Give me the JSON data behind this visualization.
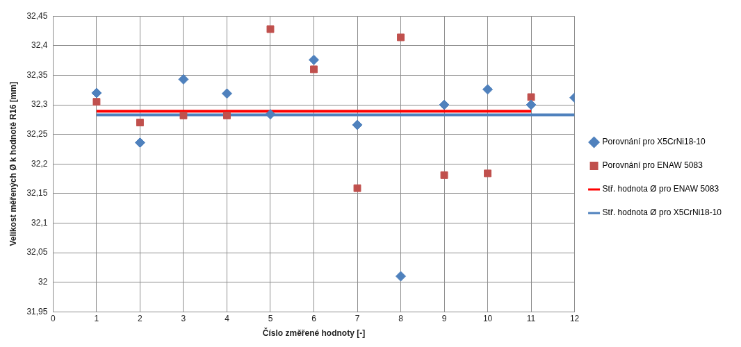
{
  "chart_data": {
    "type": "scatter",
    "xlabel": "Číslo změřené hodnoty [-]",
    "ylabel": "Velikost měřených Ø k hodnotě R16 [mm]",
    "xlim": [
      0,
      12
    ],
    "xticks": [
      0,
      1,
      2,
      3,
      4,
      5,
      6,
      7,
      8,
      9,
      10,
      11,
      12
    ],
    "ylim": [
      31.95,
      32.45
    ],
    "yticks": [
      {
        "value": 31.95,
        "label": "31,95"
      },
      {
        "value": 32,
        "label": "32"
      },
      {
        "value": 32.05,
        "label": "32,05"
      },
      {
        "value": 32.1,
        "label": "32,1"
      },
      {
        "value": 32.15,
        "label": "32,15"
      },
      {
        "value": 32.2,
        "label": "32,2"
      },
      {
        "value": 32.25,
        "label": "32,25"
      },
      {
        "value": 32.3,
        "label": "32,3"
      },
      {
        "value": 32.35,
        "label": "32,35"
      },
      {
        "value": 32.4,
        "label": "32,4"
      },
      {
        "value": 32.45,
        "label": "32,45"
      }
    ],
    "grid": true,
    "legend": "right",
    "series": [
      {
        "name": "Porovnání pro X5CrNi18-10",
        "marker": "diamond",
        "color": "#4f81bd",
        "x": [
          1,
          2,
          3,
          4,
          5,
          6,
          7,
          8,
          9,
          10,
          11,
          12
        ],
        "values": [
          32.32,
          32.236,
          32.343,
          32.319,
          32.284,
          32.376,
          32.266,
          32.01,
          32.3,
          32.326,
          32.3,
          32.312
        ]
      },
      {
        "name": "Porovnání pro ENAW 5083",
        "marker": "square",
        "color": "#c0504d",
        "x": [
          1,
          2,
          3,
          4,
          5,
          6,
          7,
          8,
          9,
          10,
          11
        ],
        "values": [
          32.305,
          32.27,
          32.282,
          32.282,
          32.428,
          32.36,
          32.159,
          32.414,
          32.181,
          32.184,
          32.313
        ]
      },
      {
        "name": "Stř. hodnota Ø pro ENAW 5083",
        "type": "line",
        "marker": "none",
        "color": "#ff0000",
        "x": [
          1,
          11
        ],
        "values": [
          32.289,
          32.289
        ]
      },
      {
        "name": "Stř. hodnota Ø pro X5CrNi18-10",
        "type": "line",
        "marker": "none",
        "color": "#4f81bd",
        "x": [
          1,
          12
        ],
        "values": [
          32.283,
          32.283
        ]
      }
    ]
  }
}
